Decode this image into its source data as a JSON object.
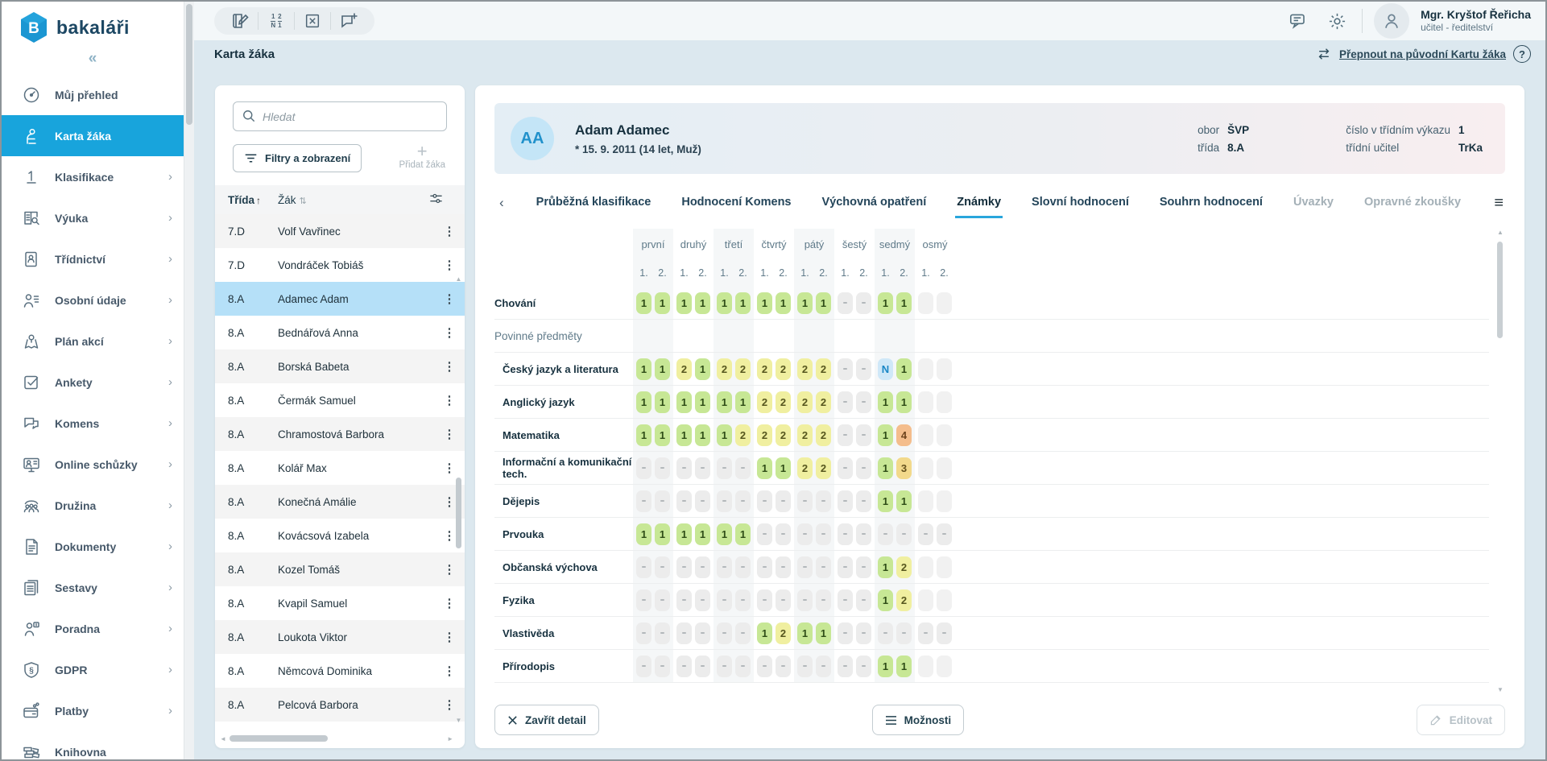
{
  "brand": {
    "name": "bakaláři"
  },
  "sidebar": {
    "collapse_glyph": "«",
    "items": [
      {
        "label": "Můj přehled",
        "icon": "gauge-icon",
        "chevron": false,
        "active": false
      },
      {
        "label": "Karta žáka",
        "icon": "student-icon",
        "chevron": false,
        "active": true
      },
      {
        "label": "Klasifikace",
        "icon": "grade-one-icon",
        "chevron": true,
        "active": false
      },
      {
        "label": "Výuka",
        "icon": "book-search-icon",
        "chevron": true,
        "active": false
      },
      {
        "label": "Třídnictví",
        "icon": "book-person-icon",
        "chevron": true,
        "active": false
      },
      {
        "label": "Osobní údaje",
        "icon": "person-list-icon",
        "chevron": true,
        "active": false
      },
      {
        "label": "Plán akcí",
        "icon": "map-pin-icon",
        "chevron": true,
        "active": false
      },
      {
        "label": "Ankety",
        "icon": "checkbox-icon",
        "chevron": true,
        "active": false
      },
      {
        "label": "Komens",
        "icon": "chat-bubbles-icon",
        "chevron": true,
        "active": false
      },
      {
        "label": "Online schůzky",
        "icon": "monitor-person-icon",
        "chevron": true,
        "active": false
      },
      {
        "label": "Družina",
        "icon": "people-group-icon",
        "chevron": true,
        "active": false
      },
      {
        "label": "Dokumenty",
        "icon": "document-icon",
        "chevron": true,
        "active": false
      },
      {
        "label": "Sestavy",
        "icon": "document-stack-icon",
        "chevron": true,
        "active": false
      },
      {
        "label": "Poradna",
        "icon": "person-info-icon",
        "chevron": true,
        "active": false
      },
      {
        "label": "GDPR",
        "icon": "shield-paragraph-icon",
        "chevron": true,
        "active": false
      },
      {
        "label": "Platby",
        "icon": "wallet-icon",
        "chevron": true,
        "active": false
      },
      {
        "label": "Knihovna",
        "icon": "books-icon",
        "chevron": false,
        "active": false
      }
    ]
  },
  "topbar": {
    "user_name": "Mgr. Kryštof Řeřicha",
    "user_role": "učitel - ředitelství"
  },
  "page": {
    "title": "Karta žáka",
    "switch_link": "Přepnout na původní Kartu žáka",
    "help_glyph": "?"
  },
  "student_list": {
    "search_placeholder": "Hledat",
    "filters_label": "Filtry a zobrazení",
    "add_label": "Přidat žáka",
    "columns": {
      "class": "Třída",
      "student": "Žák"
    },
    "rows": [
      {
        "class": "7.D",
        "name": "Volf Vavřinec",
        "selected": false
      },
      {
        "class": "7.D",
        "name": "Vondráček Tobiáš",
        "selected": false
      },
      {
        "class": "8.A",
        "name": "Adamec Adam",
        "selected": true
      },
      {
        "class": "8.A",
        "name": "Bednářová Anna",
        "selected": false
      },
      {
        "class": "8.A",
        "name": "Borská Babeta",
        "selected": false
      },
      {
        "class": "8.A",
        "name": "Čermák Samuel",
        "selected": false
      },
      {
        "class": "8.A",
        "name": "Chramostová Barbora",
        "selected": false
      },
      {
        "class": "8.A",
        "name": "Kolář Max",
        "selected": false
      },
      {
        "class": "8.A",
        "name": "Konečná Amálie",
        "selected": false
      },
      {
        "class": "8.A",
        "name": "Kovácsová Izabela",
        "selected": false
      },
      {
        "class": "8.A",
        "name": "Kozel Tomáš",
        "selected": false
      },
      {
        "class": "8.A",
        "name": "Kvapil Samuel",
        "selected": false
      },
      {
        "class": "8.A",
        "name": "Loukota Viktor",
        "selected": false
      },
      {
        "class": "8.A",
        "name": "Němcová Dominika",
        "selected": false
      },
      {
        "class": "8.A",
        "name": "Pelcová Barbora",
        "selected": false
      }
    ]
  },
  "detail": {
    "student": {
      "initials": "AA",
      "name": "Adam Adamec",
      "birth": "* 15. 9. 2011  (14 let, Muž)",
      "fields_left": [
        {
          "label": "obor",
          "value": "ŠVP"
        },
        {
          "label": "třída",
          "value": "8.A"
        }
      ],
      "fields_right": [
        {
          "label": "číslo v třídním výkazu",
          "value": "1"
        },
        {
          "label": "třídní učitel",
          "value": "TrKa"
        }
      ]
    },
    "tabs": [
      {
        "label": "Průběžná klasifikace",
        "state": "normal"
      },
      {
        "label": "Hodnocení Komens",
        "state": "normal"
      },
      {
        "label": "Výchovná opatření",
        "state": "normal"
      },
      {
        "label": "Známky",
        "state": "active"
      },
      {
        "label": "Slovní hodnocení",
        "state": "normal"
      },
      {
        "label": "Souhrn hodnocení",
        "state": "normal"
      },
      {
        "label": "Úvazky",
        "state": "disabled"
      },
      {
        "label": "Opravné zkoušky",
        "state": "disabled"
      }
    ],
    "grades": {
      "semesters": [
        "první",
        "druhý",
        "třetí",
        "čtvrtý",
        "pátý",
        "šestý",
        "sedmý",
        "osmý"
      ],
      "terms": [
        "1.",
        "2."
      ],
      "legend": {
        "1": "#c7e795",
        "2": "#f0efa0",
        "3": "#f2d98b",
        "4": "#f4bd8c",
        "N": "#cfe8f8"
      },
      "rows": [
        {
          "label": "Chování",
          "type": "row",
          "values": [
            "1",
            "1",
            "1",
            "1",
            "1",
            "1",
            "1",
            "1",
            "1",
            "1",
            "-",
            "-",
            "1",
            "1",
            "",
            ""
          ]
        },
        {
          "label": "Povinné předměty",
          "type": "section",
          "values": []
        },
        {
          "label": "Český jazyk a literatura",
          "type": "subject",
          "values": [
            "1",
            "1",
            "2",
            "1",
            "2",
            "2",
            "2",
            "2",
            "2",
            "2",
            "-",
            "-",
            "N",
            "1",
            "",
            ""
          ]
        },
        {
          "label": "Anglický jazyk",
          "type": "subject",
          "values": [
            "1",
            "1",
            "1",
            "1",
            "1",
            "1",
            "2",
            "2",
            "2",
            "2",
            "-",
            "-",
            "1",
            "1",
            "",
            ""
          ]
        },
        {
          "label": "Matematika",
          "type": "subject",
          "values": [
            "1",
            "1",
            "1",
            "1",
            "1",
            "2",
            "2",
            "2",
            "2",
            "2",
            "-",
            "-",
            "1",
            "4",
            "",
            ""
          ]
        },
        {
          "label": "Informační a komunikační tech.",
          "type": "subject",
          "values": [
            "-",
            "-",
            "-",
            "-",
            "-",
            "-",
            "1",
            "1",
            "2",
            "2",
            "-",
            "-",
            "1",
            "3",
            "",
            ""
          ]
        },
        {
          "label": "Dějepis",
          "type": "subject",
          "values": [
            "-",
            "-",
            "-",
            "-",
            "-",
            "-",
            "-",
            "-",
            "-",
            "-",
            "-",
            "-",
            "1",
            "1",
            "",
            ""
          ]
        },
        {
          "label": "Prvouka",
          "type": "subject",
          "values": [
            "1",
            "1",
            "1",
            "1",
            "1",
            "1",
            "-",
            "-",
            "-",
            "-",
            "-",
            "-",
            "-",
            "-",
            "-",
            "-"
          ]
        },
        {
          "label": "Občanská výchova",
          "type": "subject",
          "values": [
            "-",
            "-",
            "-",
            "-",
            "-",
            "-",
            "-",
            "-",
            "-",
            "-",
            "-",
            "-",
            "1",
            "2",
            "",
            ""
          ]
        },
        {
          "label": "Fyzika",
          "type": "subject",
          "values": [
            "-",
            "-",
            "-",
            "-",
            "-",
            "-",
            "-",
            "-",
            "-",
            "-",
            "-",
            "-",
            "1",
            "2",
            "",
            ""
          ]
        },
        {
          "label": "Vlastivěda",
          "type": "subject",
          "values": [
            "-",
            "-",
            "-",
            "-",
            "-",
            "-",
            "1",
            "2",
            "1",
            "1",
            "-",
            "-",
            "-",
            "-",
            "-",
            "-"
          ]
        },
        {
          "label": "Přírodopis",
          "type": "subject",
          "values": [
            "-",
            "-",
            "-",
            "-",
            "-",
            "-",
            "-",
            "-",
            "-",
            "-",
            "-",
            "-",
            "1",
            "1",
            "",
            ""
          ]
        }
      ]
    },
    "footer": {
      "close": "Zavřít detail",
      "options": "Možnosti",
      "edit": "Editovat"
    }
  }
}
